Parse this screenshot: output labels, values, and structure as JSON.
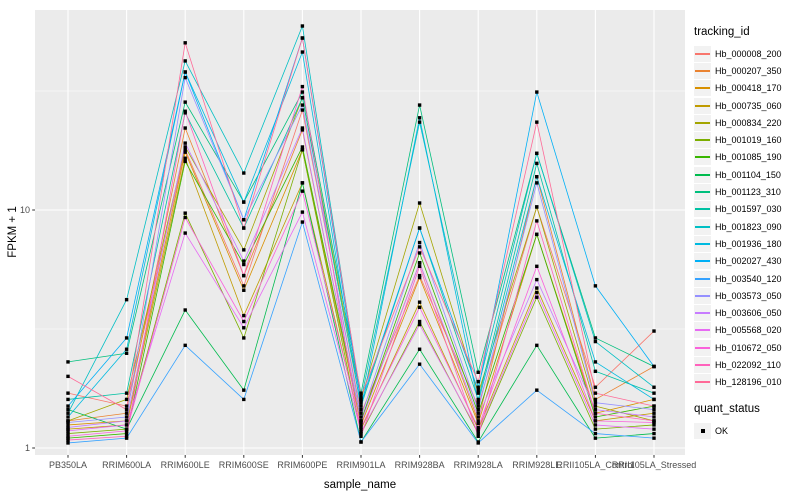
{
  "chart_data": {
    "type": "line",
    "title": "",
    "xlabel": "sample_name",
    "ylabel": "FPKM + 1",
    "y_scale": "log10",
    "ylim": [
      1,
      69
    ],
    "y_major_ticks": [
      1,
      10
    ],
    "y_minor_ticks": [
      3.1623,
      31.623
    ],
    "grid": true,
    "panel_bg": "#EBEBEB",
    "grid_color": "#FFFFFF",
    "point_marker": "black-square",
    "legend_position": "right",
    "categories": [
      "PB350LA",
      "RRIM600LA",
      "RRIM600LE",
      "RRIM600SE",
      "RRIM600PE",
      "RRIM901LA",
      "RRIM928BA",
      "RRIM928LA",
      "RRIM928LE",
      "RRII105LA_Control",
      "RRII105LA_Stressed"
    ],
    "series": [
      {
        "name": "Hb_000008_200",
        "color": "#F8766D",
        "values": [
          1.7,
          1.5,
          17.9,
          4.8,
          26.3,
          1.4,
          5.3,
          1.5,
          10.3,
          1.8,
          3.1
        ]
      },
      {
        "name": "Hb_000207_350",
        "color": "#EA8331",
        "values": [
          1.3,
          1.4,
          22.1,
          5.3,
          21.7,
          1.3,
          6.0,
          1.3,
          13.8,
          1.6,
          2.2
        ]
      },
      {
        "name": "Hb_000418_170",
        "color": "#D89000",
        "values": [
          1.25,
          1.3,
          17.5,
          4.6,
          17.9,
          1.25,
          5.2,
          1.27,
          7.9,
          1.4,
          1.6
        ]
      },
      {
        "name": "Hb_000735_060",
        "color": "#C09B00",
        "values": [
          1.2,
          1.25,
          16.5,
          3.6,
          13.0,
          1.2,
          4.1,
          1.2,
          4.7,
          1.3,
          1.4
        ]
      },
      {
        "name": "Hb_000834_220",
        "color": "#A3A500",
        "values": [
          1.3,
          1.6,
          18.4,
          6.8,
          29.6,
          1.6,
          10.7,
          1.7,
          10.3,
          1.5,
          1.3
        ]
      },
      {
        "name": "Hb_001019_160",
        "color": "#7CAE00",
        "values": [
          1.15,
          1.2,
          9.7,
          2.9,
          17.9,
          1.15,
          3.4,
          1.15,
          4.3,
          1.2,
          1.25
        ]
      },
      {
        "name": "Hb_001085_190",
        "color": "#39B600",
        "values": [
          1.1,
          1.15,
          16.0,
          5.9,
          18.4,
          1.3,
          6.6,
          1.4,
          7.9,
          1.35,
          1.5
        ]
      },
      {
        "name": "Hb_001104_150",
        "color": "#00BB4E",
        "values": [
          1.45,
          1.2,
          3.8,
          1.75,
          13.0,
          1.06,
          2.6,
          1.06,
          2.7,
          1.1,
          1.15
        ]
      },
      {
        "name": "Hb_001123_310",
        "color": "#00BF7D",
        "values": [
          2.3,
          2.5,
          28.4,
          10.8,
          31.3,
          1.7,
          27.6,
          2.08,
          17.3,
          2.9,
          2.2
        ]
      },
      {
        "name": "Hb_001597_030",
        "color": "#00C1A3",
        "values": [
          1.6,
          1.7,
          25.6,
          8.4,
          29.6,
          1.5,
          8.4,
          1.6,
          15.7,
          2.1,
          1.7
        ]
      },
      {
        "name": "Hb_001823_090",
        "color": "#00BFC4",
        "values": [
          1.4,
          4.2,
          42.3,
          14.3,
          59.3,
          1.6,
          23.4,
          1.8,
          17.3,
          2.8,
          1.8
        ]
      },
      {
        "name": "Hb_001936_180",
        "color": "#00BAE0",
        "values": [
          1.35,
          2.6,
          38.0,
          10.8,
          46.1,
          1.45,
          24.4,
          1.55,
          13.8,
          2.3,
          1.6
        ]
      },
      {
        "name": "Hb_002027_430",
        "color": "#00B0F6",
        "values": [
          1.5,
          2.9,
          38.0,
          9.1,
          52.8,
          1.55,
          8.4,
          1.75,
          31.3,
          4.8,
          2.2
        ]
      },
      {
        "name": "Hb_003540_120",
        "color": "#35A2FF",
        "values": [
          1.05,
          1.1,
          2.7,
          1.6,
          8.9,
          1.06,
          2.25,
          1.05,
          1.75,
          1.15,
          1.1
        ]
      },
      {
        "name": "Hb_003573_050",
        "color": "#9590FF",
        "values": [
          1.28,
          1.35,
          36.0,
          9.1,
          27.6,
          1.35,
          7.3,
          1.45,
          13.0,
          1.55,
          1.45
        ]
      },
      {
        "name": "Hb_003606_050",
        "color": "#C77CFF",
        "values": [
          1.22,
          1.3,
          19.1,
          6.1,
          22.1,
          1.28,
          6.0,
          1.35,
          5.1,
          1.45,
          1.35
        ]
      },
      {
        "name": "Hb_005568_020",
        "color": "#E76BF3",
        "values": [
          1.18,
          1.25,
          8.0,
          3.2,
          9.8,
          1.17,
          3.3,
          1.17,
          4.5,
          1.25,
          1.2
        ]
      },
      {
        "name": "Hb_010672_050",
        "color": "#FA62DB",
        "values": [
          1.12,
          1.18,
          9.3,
          3.4,
          12.0,
          1.22,
          3.9,
          1.22,
          5.8,
          1.3,
          1.28
        ]
      },
      {
        "name": "Hb_022092_110",
        "color": "#FF62BC",
        "values": [
          1.08,
          1.12,
          26.0,
          5.3,
          33.0,
          1.12,
          5.8,
          1.12,
          9.0,
          1.4,
          1.3
        ]
      },
      {
        "name": "Hb_128196_010",
        "color": "#FF6A98",
        "values": [
          2.0,
          1.45,
          50.4,
          8.4,
          52.8,
          1.65,
          7.0,
          1.9,
          23.4,
          1.7,
          1.5
        ]
      }
    ]
  },
  "axes": {
    "y_tick_labels": [
      "10",
      "1"
    ],
    "tick_label_color": "#4D4D4D"
  },
  "legend": {
    "title": "tracking_id"
  },
  "legend2": {
    "title": "quant_status",
    "items": [
      {
        "label": "OK"
      }
    ]
  }
}
